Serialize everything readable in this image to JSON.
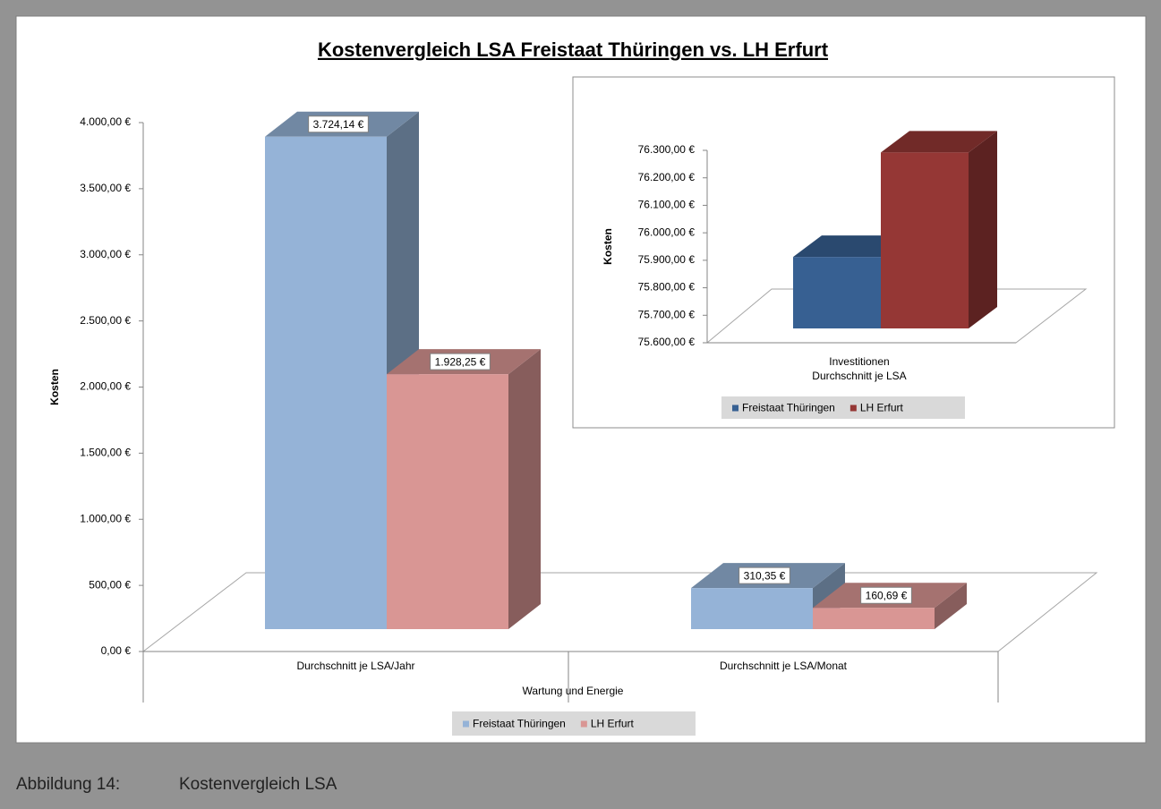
{
  "chart_data": [
    {
      "type": "bar3d",
      "title": "Kostenvergleich LSA Freistaat Thüringen vs. LH Erfurt",
      "y_label": "Kosten",
      "x_label": "Wartung und Energie",
      "categories": [
        "Durchschnitt je LSA/Jahr",
        "Durchschnitt je LSA/Monat"
      ],
      "series": [
        {
          "name": "Freistaat Thüringen",
          "color": "#95b3d7",
          "values": [
            3724.14,
            310.35
          ],
          "value_labels": [
            "3.724,14 €",
            "310,35 €"
          ]
        },
        {
          "name": "LH Erfurt",
          "color": "#d99694",
          "values": [
            1928.25,
            160.69
          ],
          "value_labels": [
            "1.928,25 €",
            "160,69 €"
          ]
        }
      ],
      "ylim": [
        0,
        4000
      ],
      "yticks": [
        {
          "value": 0,
          "label": "0,00 €"
        },
        {
          "value": 500,
          "label": "500,00 €"
        },
        {
          "value": 1000,
          "label": "1.000,00 €"
        },
        {
          "value": 1500,
          "label": "1.500,00 €"
        },
        {
          "value": 2000,
          "label": "2.000,00 €"
        },
        {
          "value": 2500,
          "label": "2.500,00 €"
        },
        {
          "value": 3000,
          "label": "3.000,00 €"
        },
        {
          "value": 3500,
          "label": "3.500,00 €"
        },
        {
          "value": 4000,
          "label": "4.000,00 €"
        }
      ],
      "legend": "bottom"
    },
    {
      "type": "bar3d",
      "y_label": "Kosten",
      "categories": [
        "Investitionen\nDurchschnitt je LSA"
      ],
      "series": [
        {
          "name": "Freistaat Thüringen",
          "color": "#376092",
          "values": [
            75860
          ]
        },
        {
          "name": "LH Erfurt",
          "color": "#953735",
          "values": [
            76240
          ]
        }
      ],
      "ylim": [
        75600,
        76300
      ],
      "yticks": [
        {
          "value": 75600,
          "label": "75.600,00 €"
        },
        {
          "value": 75700,
          "label": "75.700,00 €"
        },
        {
          "value": 75800,
          "label": "75.800,00 €"
        },
        {
          "value": 75900,
          "label": "75.900,00 €"
        },
        {
          "value": 76000,
          "label": "76.000,00 €"
        },
        {
          "value": 76100,
          "label": "76.100,00 €"
        },
        {
          "value": 76200,
          "label": "76.200,00 €"
        },
        {
          "value": 76300,
          "label": "76.300,00 €"
        }
      ],
      "legend": "bottom"
    }
  ],
  "caption": {
    "label": "Abbildung 14:",
    "text": "Kostenvergleich LSA"
  }
}
